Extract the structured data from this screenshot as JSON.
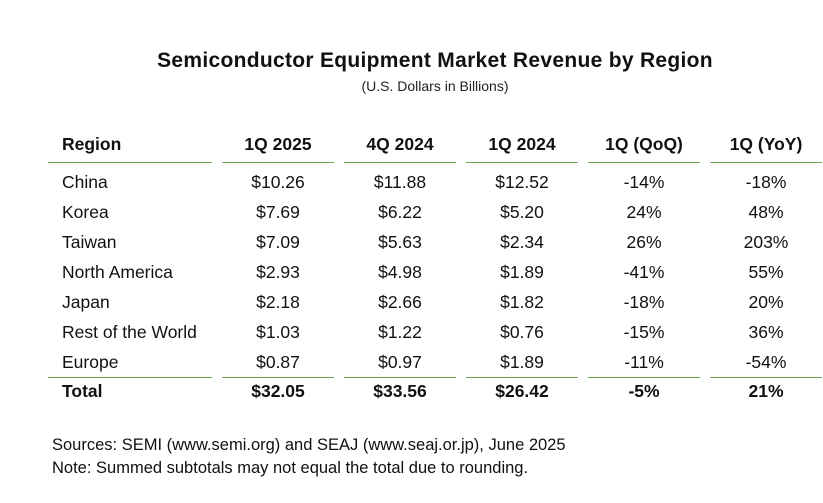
{
  "chart_data": {
    "type": "table",
    "title": "Semiconductor Equipment Market Revenue by Region",
    "subtitle": "(U.S. Dollars in Billions)",
    "columns": [
      "Region",
      "1Q 2025",
      "4Q 2024",
      "1Q 2024",
      "1Q (QoQ)",
      "1Q (YoY)"
    ],
    "rows": [
      [
        "China",
        "$10.26",
        "$11.88",
        "$12.52",
        "-14%",
        "-18%"
      ],
      [
        "Korea",
        "$7.69",
        "$6.22",
        "$5.20",
        "24%",
        "48%"
      ],
      [
        "Taiwan",
        "$7.09",
        "$5.63",
        "$2.34",
        "26%",
        "203%"
      ],
      [
        "North America",
        "$2.93",
        "$4.98",
        "$1.89",
        "-41%",
        "55%"
      ],
      [
        "Japan",
        "$2.18",
        "$2.66",
        "$1.82",
        "-18%",
        "20%"
      ],
      [
        "Rest of the World",
        "$1.03",
        "$1.22",
        "$0.76",
        "-15%",
        "36%"
      ],
      [
        "Europe",
        "$0.87",
        "$0.97",
        "$1.89",
        "-11%",
        "-54%"
      ]
    ],
    "total": [
      "Total",
      "$32.05",
      "$33.56",
      "$26.42",
      "-5%",
      "21%"
    ],
    "accent_color": "#6aa84f"
  },
  "footer": {
    "sources": "Sources: SEMI (www.semi.org) and SEAJ (www.seaj.or.jp), June 2025",
    "note": "Note: Summed subtotals may not equal the total due to rounding."
  }
}
